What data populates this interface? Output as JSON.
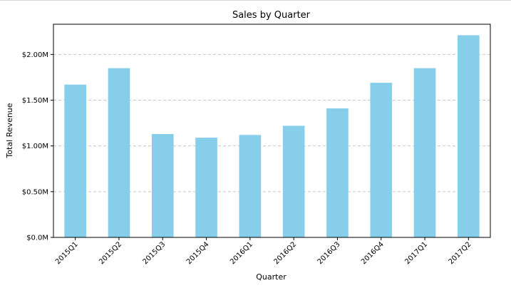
{
  "chart_data": {
    "type": "bar",
    "title": "Sales by Quarter",
    "xlabel": "Quarter",
    "ylabel": "Total Revenue",
    "categories": [
      "2015Q1",
      "2015Q2",
      "2015Q3",
      "2015Q4",
      "2016Q1",
      "2016Q2",
      "2016Q3",
      "2016Q4",
      "2017Q1",
      "2017Q2"
    ],
    "values": [
      1.67,
      1.85,
      1.13,
      1.09,
      1.12,
      1.22,
      1.41,
      1.69,
      1.85,
      2.21
    ],
    "value_unit": "$M",
    "ylim": [
      0,
      2.33
    ],
    "yticks": [
      0,
      0.5,
      1.0,
      1.5,
      2.0
    ],
    "ytick_labels": [
      "$0.0M",
      "$0.50M",
      "$1.00M",
      "$1.50M",
      "$2.00M"
    ],
    "grid": "y-dashed",
    "bar_color": "#87ceeb"
  }
}
